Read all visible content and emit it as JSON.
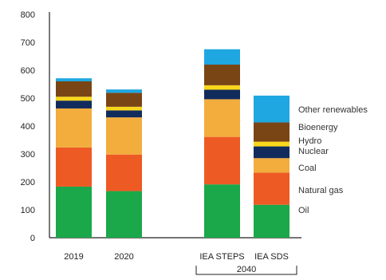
{
  "chart_data": {
    "type": "bar",
    "stacked": true,
    "categories": [
      "2019",
      "2020",
      "IEA STEPS",
      "IEA SDS"
    ],
    "group_label": "2040",
    "ylim": [
      0,
      800
    ],
    "yticks": [
      0,
      100,
      200,
      300,
      400,
      500,
      600,
      700,
      800
    ],
    "grid": false,
    "legend_position": "right",
    "series": [
      {
        "name": "Oil",
        "color": "#1aa84a",
        "values": [
          183,
          167,
          191,
          118
        ]
      },
      {
        "name": "Natural gas",
        "color": "#ee5a24",
        "values": [
          140,
          131,
          170,
          115
        ]
      },
      {
        "name": "Coal",
        "color": "#f2ad3d",
        "values": [
          140,
          133,
          135,
          52
        ]
      },
      {
        "name": "Nuclear",
        "color": "#112b5c",
        "values": [
          28,
          25,
          34,
          42
        ]
      },
      {
        "name": "Hydro",
        "color": "#f9d71c",
        "values": [
          14,
          13,
          16,
          17
        ]
      },
      {
        "name": "Bioenergy",
        "color": "#7a4515",
        "values": [
          55,
          50,
          74,
          69
        ]
      },
      {
        "name": "Other renewables",
        "color": "#1ea7e0",
        "values": [
          11,
          12,
          55,
          96
        ]
      }
    ]
  }
}
